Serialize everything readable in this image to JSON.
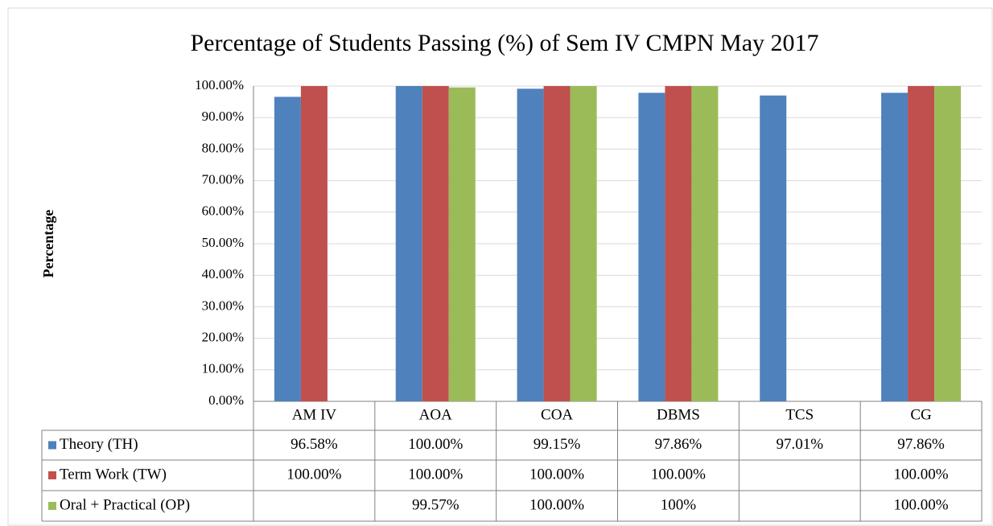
{
  "chart_data": {
    "type": "bar",
    "title": "Percentage of Students Passing (%) of Sem IV CMPN May 2017",
    "y_label": "Percentage",
    "categories": [
      "AM IV",
      "AOA",
      "COA",
      "DBMS",
      "TCS",
      "CG"
    ],
    "series": [
      {
        "name": "Theory (TH)",
        "color": "#4f81bd",
        "values": [
          96.58,
          100,
          99.15,
          97.86,
          97.01,
          97.86
        ],
        "value_labels": [
          "96.58%",
          "100.00%",
          "99.15%",
          "97.86%",
          "97.01%",
          "97.86%"
        ]
      },
      {
        "name": "Term Work (TW)",
        "color": "#c0504d",
        "values": [
          100,
          100,
          100,
          100,
          null,
          100
        ],
        "value_labels": [
          "100.00%",
          "100.00%",
          "100.00%",
          "100.00%",
          null,
          "100.00%"
        ]
      },
      {
        "name": "Oral + Practical (OP)",
        "color": "#9bbb59",
        "values": [
          null,
          99.57,
          100,
          100,
          null,
          100
        ],
        "value_labels": [
          null,
          "99.57%",
          "100.00%",
          "100%",
          null,
          "100.00%"
        ]
      }
    ],
    "ylim": [
      0,
      100
    ],
    "yticks": [
      {
        "value": 0,
        "label": "0.00%"
      },
      {
        "value": 10,
        "label": "10.00%"
      },
      {
        "value": 20,
        "label": "20.00%"
      },
      {
        "value": 30,
        "label": "30.00%"
      },
      {
        "value": 40,
        "label": "40.00%"
      },
      {
        "value": 50,
        "label": "50.00%"
      },
      {
        "value": 60,
        "label": "60.00%"
      },
      {
        "value": 70,
        "label": "70.00%"
      },
      {
        "value": 80,
        "label": "80.00%"
      },
      {
        "value": 90,
        "label": "90.00%"
      },
      {
        "value": 100,
        "label": "100.00%"
      }
    ],
    "grid": true
  }
}
